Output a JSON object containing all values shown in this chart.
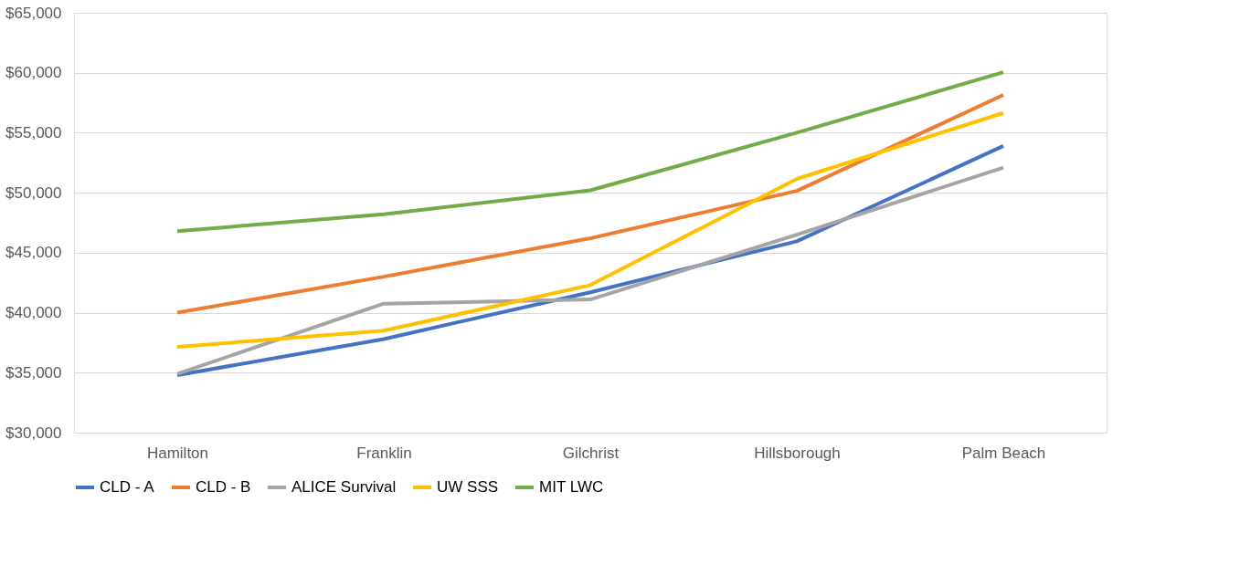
{
  "chart_data": {
    "type": "line",
    "categories": [
      "Hamilton",
      "Franklin",
      "Gilchrist",
      "Hillsborough",
      "Palm Beach"
    ],
    "series": [
      {
        "name": "CLD - A",
        "color": "#4472c4",
        "values": [
          34800,
          37800,
          41700,
          45950,
          53900
        ]
      },
      {
        "name": "CLD - B",
        "color": "#ed7d31",
        "values": [
          40000,
          43000,
          46200,
          50150,
          58150
        ]
      },
      {
        "name": "ALICE Survival",
        "color": "#a5a5a5",
        "values": [
          34900,
          40750,
          41100,
          46500,
          52100
        ]
      },
      {
        "name": "UW SSS",
        "color": "#ffc000",
        "values": [
          37150,
          38500,
          42300,
          51150,
          56650
        ]
      },
      {
        "name": "MIT LWC",
        "color": "#70ad47",
        "values": [
          46800,
          48200,
          50200,
          55000,
          60050
        ]
      }
    ],
    "ylim": [
      30000,
      65000
    ],
    "yticks": [
      {
        "value": 30000,
        "label": "$30,000"
      },
      {
        "value": 35000,
        "label": "$35,000"
      },
      {
        "value": 40000,
        "label": "$40,000"
      },
      {
        "value": 45000,
        "label": "$45,000"
      },
      {
        "value": 50000,
        "label": "$50,000"
      },
      {
        "value": 55000,
        "label": "$55,000"
      },
      {
        "value": 60000,
        "label": "$60,000"
      },
      {
        "value": 65000,
        "label": "$65,000"
      }
    ],
    "grid": "y",
    "legend": "bottom",
    "marker": "none",
    "line_style": "solid"
  }
}
